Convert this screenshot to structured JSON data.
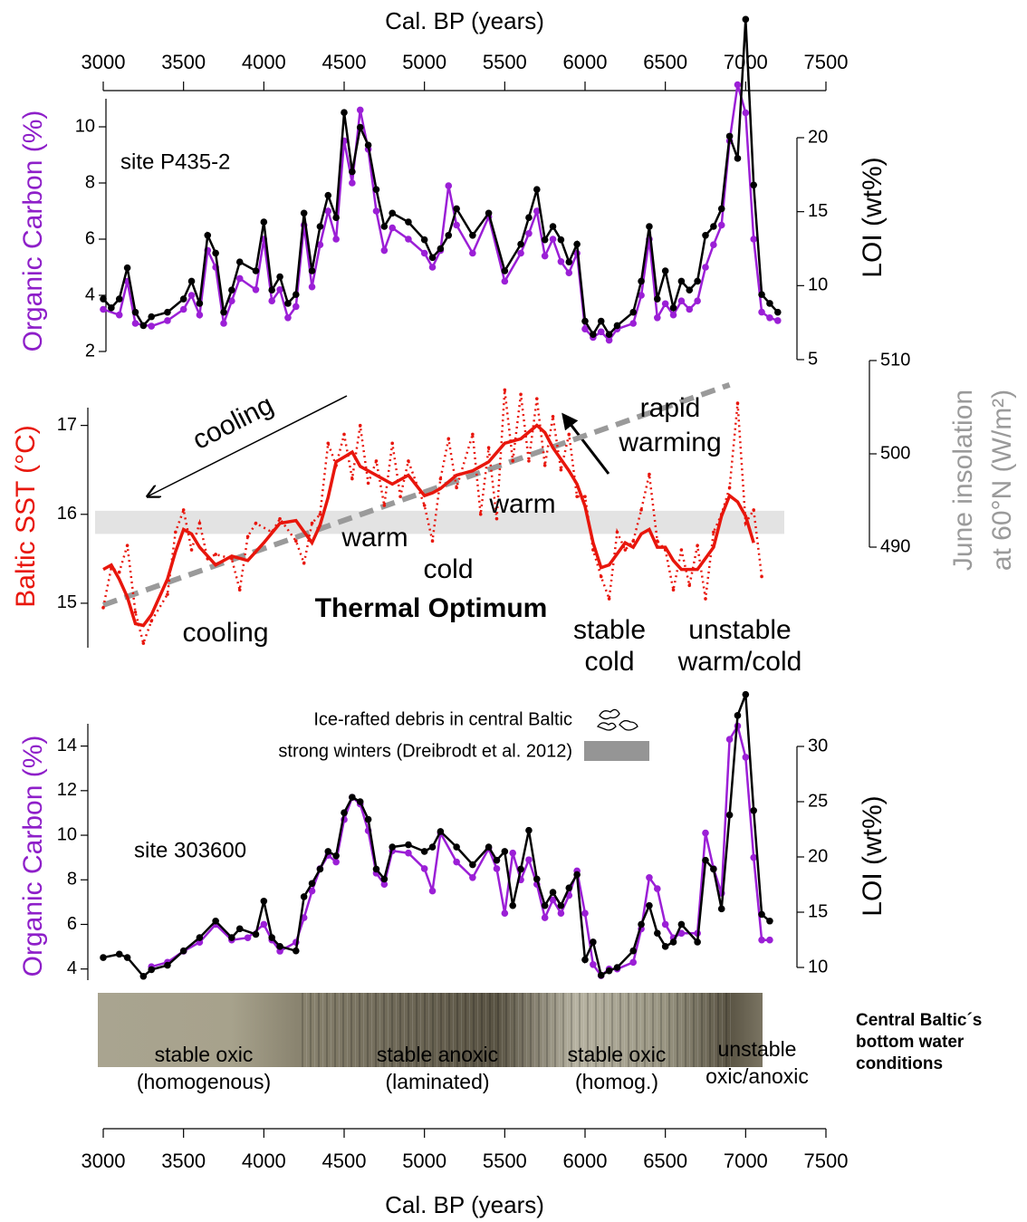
{
  "chart_data": [
    {
      "type": "line",
      "x_label": "Cal. BP (years)",
      "xlim": [
        3000,
        7500
      ],
      "xticks": [
        3000,
        3500,
        4000,
        4500,
        5000,
        5500,
        6000,
        6500,
        7000,
        7500
      ],
      "y_label": "Organic Carbon (%)",
      "y_label_color": "#8e1fc9",
      "ylim": [
        2,
        11
      ],
      "yticks": [
        2,
        4,
        6,
        8,
        10
      ],
      "y2_label": "LOI (wt%)",
      "y2lim": [
        5,
        20
      ],
      "y2ticks": [
        5,
        10,
        15,
        20
      ],
      "annotations": [
        "site P435-2"
      ],
      "series": [
        {
          "color": "#9b1fd6",
          "markers": true,
          "x": [
            3000,
            3100,
            3150,
            3200,
            3300,
            3400,
            3500,
            3550,
            3600,
            3650,
            3700,
            3750,
            3800,
            3850,
            3950,
            4000,
            4050,
            4100,
            4150,
            4200,
            4250,
            4300,
            4350,
            4400,
            4450,
            4500,
            4550,
            4600,
            4650,
            4700,
            4750,
            4800,
            4900,
            5000,
            5050,
            5100,
            5150,
            5200,
            5300,
            5400,
            5500,
            5600,
            5650,
            5700,
            5750,
            5800,
            5850,
            5900,
            5950,
            6000,
            6050,
            6100,
            6150,
            6200,
            6300,
            6350,
            6400,
            6450,
            6500,
            6550,
            6600,
            6650,
            6700,
            6750,
            6800,
            6850,
            6900,
            6950,
            7000,
            7050,
            7100,
            7150,
            7200
          ],
          "values": [
            3.5,
            3.3,
            4.5,
            3.0,
            2.9,
            3.1,
            3.5,
            4.0,
            3.3,
            5.6,
            5.0,
            3.0,
            3.8,
            4.6,
            4.2,
            6.0,
            3.8,
            4.2,
            3.2,
            3.6,
            6.5,
            4.3,
            5.8,
            7.0,
            6.0,
            9.5,
            8.0,
            10.6,
            9.2,
            7.0,
            5.6,
            6.4,
            6.0,
            5.5,
            5.0,
            5.6,
            7.9,
            6.5,
            5.5,
            6.8,
            4.5,
            5.5,
            6.2,
            7.0,
            5.4,
            6.0,
            5.2,
            4.8,
            5.5,
            2.8,
            2.5,
            2.7,
            2.4,
            2.8,
            3.0,
            4.0,
            6.0,
            3.2,
            3.7,
            3.3,
            3.8,
            3.5,
            3.8,
            5.0,
            5.8,
            6.5,
            9.5,
            11.5,
            10.5,
            6.0,
            3.4,
            3.2,
            3.1
          ]
        },
        {
          "color": "#000000",
          "markers": true,
          "axis": "y2",
          "x": [
            3000,
            3050,
            3100,
            3150,
            3200,
            3250,
            3300,
            3400,
            3500,
            3550,
            3600,
            3650,
            3700,
            3750,
            3800,
            3850,
            3950,
            4000,
            4050,
            4100,
            4150,
            4200,
            4250,
            4300,
            4350,
            4400,
            4450,
            4500,
            4550,
            4600,
            4650,
            4700,
            4750,
            4800,
            4900,
            5000,
            5050,
            5100,
            5150,
            5200,
            5300,
            5400,
            5500,
            5600,
            5650,
            5700,
            5750,
            5800,
            5850,
            5900,
            5950,
            6000,
            6050,
            6100,
            6150,
            6200,
            6300,
            6350,
            6400,
            6450,
            6500,
            6550,
            6600,
            6650,
            6700,
            6750,
            6800,
            6850,
            6900,
            6950,
            7000,
            7050,
            7100,
            7150,
            7200
          ],
          "values": [
            9.1,
            8.5,
            9.1,
            11.2,
            8.2,
            7.3,
            7.9,
            8.2,
            9.1,
            10.3,
            8.8,
            13.4,
            12.2,
            8.2,
            9.7,
            11.6,
            11.0,
            14.3,
            9.7,
            10.6,
            8.8,
            9.4,
            14.9,
            11.0,
            14.0,
            16.1,
            14.6,
            21.7,
            17.7,
            20.7,
            19.5,
            16.5,
            14.0,
            14.9,
            14.3,
            13.1,
            11.9,
            12.5,
            13.4,
            15.2,
            13.4,
            14.9,
            11.0,
            12.8,
            14.6,
            16.5,
            13.1,
            14.0,
            13.1,
            11.6,
            12.8,
            7.6,
            6.7,
            7.6,
            6.7,
            7.3,
            8.2,
            10.3,
            14.0,
            9.1,
            11.0,
            8.5,
            10.3,
            9.7,
            10.3,
            13.4,
            14.0,
            15.2,
            20.1,
            18.6,
            28.0,
            16.8,
            9.4,
            8.8,
            8.2
          ]
        }
      ]
    },
    {
      "type": "line",
      "xlim": [
        3000,
        7500
      ],
      "y_label": "Baltic SST (°C)",
      "y_label_color": "#e8160c",
      "ylim": [
        14.5,
        17.2
      ],
      "yticks": [
        15,
        16,
        17
      ],
      "y2_label": [
        "June insolation",
        "at 60°N (W/m²)"
      ],
      "y2_label_color": "#9a9a9a",
      "y2lim": [
        490,
        510
      ],
      "y2ticks": [
        490,
        500,
        510
      ],
      "band": [
        15.78,
        16.04
      ],
      "band_color": "#e3e3e3",
      "annotations": [
        "cooling",
        "rapid",
        "warming",
        "warm",
        "cold",
        "warm",
        "Thermal Optimum",
        "cooling",
        "stable",
        "cold",
        "unstable",
        "warm/cold"
      ],
      "series": [
        {
          "color": "#9a9a9a",
          "style": "dashed",
          "axis": "y2",
          "x": [
            3000,
            6900
          ],
          "values": [
            483.8,
            507.4
          ]
        },
        {
          "color": "#e8160c",
          "style": "dotted",
          "markers": true,
          "x": [
            3000,
            3050,
            3100,
            3150,
            3200,
            3250,
            3300,
            3400,
            3450,
            3500,
            3550,
            3600,
            3650,
            3700,
            3800,
            3850,
            3900,
            3950,
            4050,
            4100,
            4200,
            4250,
            4300,
            4350,
            4400,
            4450,
            4500,
            4550,
            4600,
            4650,
            4700,
            4750,
            4800,
            4850,
            4900,
            5000,
            5050,
            5100,
            5150,
            5200,
            5300,
            5350,
            5400,
            5450,
            5500,
            5550,
            5600,
            5650,
            5700,
            5750,
            5800,
            5850,
            5900,
            5950,
            6000,
            6050,
            6100,
            6150,
            6200,
            6250,
            6300,
            6350,
            6400,
            6450,
            6500,
            6550,
            6600,
            6650,
            6700,
            6750,
            6800,
            6850,
            6900,
            6950,
            7000,
            7050,
            7100
          ],
          "values": [
            14.95,
            15.4,
            15.35,
            15.65,
            14.9,
            14.55,
            14.8,
            15.1,
            15.8,
            16.05,
            15.6,
            15.9,
            15.5,
            15.55,
            15.5,
            15.15,
            15.75,
            15.9,
            15.8,
            15.95,
            15.7,
            15.45,
            15.9,
            16.0,
            16.8,
            16.55,
            16.9,
            16.4,
            17.0,
            16.35,
            16.6,
            16.1,
            16.8,
            16.2,
            16.6,
            16.1,
            15.7,
            16.4,
            16.85,
            16.3,
            16.9,
            16.0,
            16.75,
            15.95,
            17.4,
            16.6,
            17.35,
            16.6,
            17.3,
            16.55,
            17.1,
            16.5,
            16.9,
            16.2,
            16.2,
            15.6,
            15.3,
            15.05,
            15.8,
            15.6,
            15.7,
            16.05,
            16.45,
            15.7,
            15.6,
            15.15,
            15.6,
            15.2,
            15.65,
            15.05,
            15.8,
            16.0,
            16.3,
            17.25,
            15.9,
            16.05,
            15.3
          ]
        },
        {
          "color": "#e8160c",
          "style": "solid",
          "x": [
            3000,
            3050,
            3100,
            3150,
            3200,
            3250,
            3300,
            3400,
            3450,
            3500,
            3550,
            3600,
            3700,
            3800,
            3900,
            4000,
            4100,
            4200,
            4300,
            4350,
            4400,
            4450,
            4550,
            4600,
            4700,
            4800,
            4900,
            5000,
            5050,
            5100,
            5200,
            5300,
            5400,
            5500,
            5600,
            5700,
            5750,
            5800,
            5900,
            5950,
            6000,
            6050,
            6100,
            6150,
            6250,
            6300,
            6350,
            6400,
            6450,
            6500,
            6550,
            6600,
            6700,
            6800,
            6850,
            6900,
            6950,
            7000,
            7050
          ],
          "values": [
            15.38,
            15.43,
            15.27,
            15.07,
            14.77,
            14.75,
            14.87,
            15.27,
            15.58,
            15.83,
            15.78,
            15.63,
            15.43,
            15.53,
            15.48,
            15.68,
            15.9,
            15.93,
            15.68,
            15.88,
            16.19,
            16.59,
            16.7,
            16.54,
            16.44,
            16.34,
            16.44,
            16.21,
            16.24,
            16.29,
            16.44,
            16.49,
            16.59,
            16.8,
            16.85,
            17.0,
            16.92,
            16.75,
            16.49,
            16.34,
            16.09,
            15.68,
            15.4,
            15.43,
            15.68,
            15.63,
            15.78,
            15.83,
            15.63,
            15.63,
            15.48,
            15.38,
            15.38,
            15.63,
            15.98,
            16.21,
            16.14,
            15.98,
            15.68
          ]
        }
      ]
    },
    {
      "type": "line",
      "x_label": "Cal. BP (years)",
      "xlim": [
        3000,
        7500
      ],
      "xticks": [
        3000,
        3500,
        4000,
        4500,
        5000,
        5500,
        6000,
        6500,
        7000,
        7500
      ],
      "y_label": "Organic Carbon (%)",
      "y_label_color": "#8e1fc9",
      "ylim": [
        3.5,
        15
      ],
      "yticks": [
        4,
        6,
        8,
        10,
        12,
        14
      ],
      "y2_label": "LOI (wt%)",
      "y2lim": [
        10,
        30
      ],
      "y2ticks": [
        10,
        15,
        20,
        25,
        30
      ],
      "legend": [
        "Ice-rafted debris in central Baltic",
        "strong winters (Dreibrodt et al. 2012)"
      ],
      "annotations": [
        "site 303600"
      ],
      "core_labels": [
        [
          "stable oxic",
          "(homogenous)"
        ],
        [
          "stable anoxic",
          "(laminated)"
        ],
        [
          "stable oxic",
          "(homog.)"
        ],
        [
          "unstable",
          "oxic/anoxic"
        ]
      ],
      "core_title": [
        "Central Baltic´s",
        "bottom water",
        "conditions"
      ],
      "series": [
        {
          "color": "#9b1fd6",
          "markers": true,
          "x": [
            3300,
            3400,
            3500,
            3600,
            3700,
            3800,
            3900,
            4000,
            4050,
            4100,
            4200,
            4250,
            4300,
            4350,
            4400,
            4450,
            4500,
            4550,
            4600,
            4650,
            4700,
            4750,
            4800,
            4900,
            5000,
            5050,
            5100,
            5200,
            5300,
            5400,
            5450,
            5500,
            5550,
            5600,
            5650,
            5700,
            5750,
            5800,
            5850,
            5900,
            5950,
            6000,
            6050,
            6100,
            6150,
            6200,
            6300,
            6350,
            6400,
            6450,
            6500,
            6550,
            6600,
            6700,
            6750,
            6800,
            6850,
            6900,
            6950,
            7000,
            7050,
            7100,
            7150
          ],
          "values": [
            4.1,
            4.3,
            4.8,
            5.2,
            6.0,
            5.3,
            5.4,
            6.0,
            5.3,
            4.8,
            5.2,
            6.3,
            7.5,
            8.5,
            9.1,
            8.8,
            10.7,
            11.7,
            11.4,
            10.2,
            8.3,
            7.8,
            9.3,
            9.2,
            8.5,
            7.5,
            10.1,
            8.8,
            8.1,
            9.4,
            8.5,
            6.5,
            9.2,
            8.0,
            8.9,
            7.8,
            6.3,
            7.1,
            6.5,
            7.3,
            8.4,
            6.5,
            4.2,
            3.7,
            4.0,
            4.0,
            4.3,
            5.8,
            8.1,
            7.6,
            6.0,
            5.4,
            5.6,
            5.6,
            10.1,
            8.5,
            7.4,
            14.3,
            14.9,
            13.5,
            9.0,
            5.3,
            5.3
          ]
        },
        {
          "color": "#000000",
          "markers": true,
          "axis": "y2",
          "x": [
            3000,
            3100,
            3150,
            3250,
            3300,
            3400,
            3500,
            3600,
            3700,
            3800,
            3850,
            3950,
            4000,
            4050,
            4100,
            4200,
            4250,
            4300,
            4350,
            4400,
            4450,
            4500,
            4550,
            4600,
            4650,
            4700,
            4750,
            4800,
            4900,
            5000,
            5050,
            5100,
            5200,
            5300,
            5400,
            5450,
            5500,
            5550,
            5600,
            5650,
            5700,
            5750,
            5800,
            5850,
            5900,
            5950,
            6000,
            6050,
            6100,
            6150,
            6200,
            6300,
            6350,
            6400,
            6450,
            6500,
            6550,
            6600,
            6700,
            6750,
            6800,
            6850,
            6900,
            6950,
            7000,
            7050,
            7100,
            7150
          ],
          "values": [
            10.9,
            11.2,
            10.9,
            9.2,
            9.8,
            10.2,
            11.5,
            12.7,
            14.2,
            12.7,
            13.5,
            13.0,
            16.0,
            12.7,
            11.9,
            11.5,
            16.4,
            17.6,
            18.9,
            20.5,
            20.1,
            24.0,
            25.4,
            25.0,
            23.4,
            18.9,
            18.0,
            20.9,
            21.1,
            20.5,
            20.9,
            22.3,
            20.9,
            19.3,
            20.9,
            19.7,
            20.5,
            15.6,
            18.9,
            22.4,
            18.0,
            15.6,
            16.8,
            15.6,
            17.2,
            18.4,
            10.7,
            12.3,
            9.3,
            9.7,
            10.0,
            11.5,
            13.9,
            15.6,
            13.1,
            11.9,
            12.3,
            13.9,
            12.3,
            19.7,
            18.9,
            15.3,
            23.8,
            32.8,
            34.7,
            24.2,
            14.8,
            14.2
          ]
        }
      ]
    }
  ]
}
